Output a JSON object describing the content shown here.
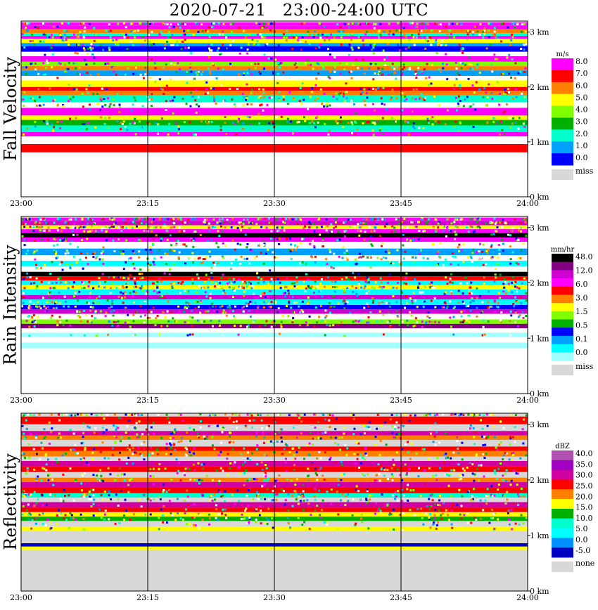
{
  "title": "2020-07-21   23:00-24:00 UTC",
  "x_tick_labels": [
    "23:00",
    "23:15",
    "23:30",
    "23:45",
    "24:00"
  ],
  "y_tick_labels": [
    "0 km",
    "1 km",
    "2 km",
    "3 km"
  ],
  "chart_data": [
    {
      "type": "heatmap",
      "title": "Fall Velocity",
      "ylabel": "Fall Velocity",
      "x": [
        "23:00",
        "23:15",
        "23:30",
        "23:45",
        "24:00"
      ],
      "y_ticks": [
        "0 km",
        "1 km",
        "2 km",
        "3 km"
      ],
      "ylim_km": [
        0,
        3.2
      ],
      "legend": {
        "unit": "m/s",
        "placement": "right",
        "labels": [
          "8.0",
          "7.0",
          "6.0",
          "5.0",
          "4.0",
          "3.0",
          "2.0",
          "1.0",
          "0.0"
        ],
        "colors": [
          "#ff00ff",
          "#ff0000",
          "#ff8000",
          "#ffff00",
          "#80ff00",
          "#00b000",
          "#00ffcc",
          "#00a0ff",
          "#0000ff"
        ],
        "missing_label": "miss",
        "missing_color": "#d8d8d8"
      },
      "bands": [
        {
          "top_km": 3.18,
          "bottom_km": 3.12,
          "color": "#ff00ff",
          "noise": 0.6
        },
        {
          "top_km": 3.12,
          "bottom_km": 3.05,
          "color": "#ff00ff",
          "noise": 0.2
        },
        {
          "top_km": 3.05,
          "bottom_km": 2.98,
          "color": "#ff8000",
          "noise": 0.3
        },
        {
          "top_km": 2.98,
          "bottom_km": 2.93,
          "color": "#00ffcc",
          "noise": 0.3
        },
        {
          "top_km": 2.93,
          "bottom_km": 2.88,
          "color": "#ff00ff",
          "noise": 0.3
        },
        {
          "top_km": 2.88,
          "bottom_km": 2.8,
          "color": "#ffff00",
          "noise": 0.2
        },
        {
          "top_km": 2.8,
          "bottom_km": 2.74,
          "color": "#00a0ff",
          "noise": 0.3
        },
        {
          "top_km": 2.74,
          "bottom_km": 2.64,
          "color": "#0000ff",
          "noise": 0.25
        },
        {
          "top_km": 2.64,
          "bottom_km": 2.56,
          "color": "#ffffff",
          "noise": 0.1
        },
        {
          "top_km": 2.56,
          "bottom_km": 2.46,
          "color": "#ff00ff",
          "noise": 0.1
        },
        {
          "top_km": 2.46,
          "bottom_km": 2.38,
          "color": "#80ff00",
          "noise": 0.3
        },
        {
          "top_km": 2.38,
          "bottom_km": 2.3,
          "color": "#ff8000",
          "noise": 0.3
        },
        {
          "top_km": 2.3,
          "bottom_km": 2.2,
          "color": "#00a0ff",
          "noise": 0.4
        },
        {
          "top_km": 2.2,
          "bottom_km": 2.12,
          "color": "#ffffff",
          "noise": 0.1
        },
        {
          "top_km": 2.12,
          "bottom_km": 2.0,
          "color": "#ffff00",
          "noise": 0.1
        },
        {
          "top_km": 2.0,
          "bottom_km": 1.93,
          "color": "#ff0000",
          "noise": 0.2
        },
        {
          "top_km": 1.93,
          "bottom_km": 1.85,
          "color": "#ff8000",
          "noise": 0.2
        },
        {
          "top_km": 1.85,
          "bottom_km": 1.72,
          "color": "#00ffcc",
          "noise": 0.5
        },
        {
          "top_km": 1.72,
          "bottom_km": 1.62,
          "color": "#ffffff",
          "noise": 0.3
        },
        {
          "top_km": 1.62,
          "bottom_km": 1.48,
          "color": "#ff00ff",
          "noise": 0.1
        },
        {
          "top_km": 1.48,
          "bottom_km": 1.4,
          "color": "#ffff00",
          "noise": 0.15
        },
        {
          "top_km": 1.4,
          "bottom_km": 1.3,
          "color": "#00b000",
          "noise": 0.5
        },
        {
          "top_km": 1.3,
          "bottom_km": 1.18,
          "color": "#00ffcc",
          "noise": 0.2
        },
        {
          "top_km": 1.18,
          "bottom_km": 1.1,
          "color": "#ff00ff",
          "noise": 0.1
        },
        {
          "top_km": 0.96,
          "bottom_km": 0.81,
          "color": "#ff0000",
          "noise": 0.0
        }
      ]
    },
    {
      "type": "heatmap",
      "title": "Rain Intensity",
      "ylabel": "Rain Intensity",
      "x": [
        "23:00",
        "23:15",
        "23:30",
        "23:45",
        "24:00"
      ],
      "y_ticks": [
        "0 km",
        "1 km",
        "2 km",
        "3 km"
      ],
      "ylim_km": [
        0,
        3.2
      ],
      "legend": {
        "unit": "mm/hr",
        "placement": "right",
        "labels": [
          "48.0",
          "12.0",
          "6.0",
          "3.0",
          "1.5",
          "0.5",
          "0.1",
          "0.0"
        ],
        "colors": [
          "#000000",
          "#800080",
          "#d000d0",
          "#ff00ff",
          "#ff0000",
          "#ff8000",
          "#ffff00",
          "#80ff00",
          "#00b000",
          "#0000ff",
          "#00a0ff",
          "#00ffff",
          "#a0ffff"
        ],
        "missing_label": "miss",
        "missing_color": "#d8d8d8"
      },
      "bands": [
        {
          "top_km": 3.18,
          "bottom_km": 3.12,
          "color": "#ff00ff",
          "noise": 0.6
        },
        {
          "top_km": 3.12,
          "bottom_km": 3.04,
          "color": "#d000d0",
          "noise": 0.5
        },
        {
          "top_km": 3.04,
          "bottom_km": 2.97,
          "color": "#ffff00",
          "noise": 0.5
        },
        {
          "top_km": 2.97,
          "bottom_km": 2.9,
          "color": "#ff00ff",
          "noise": 0.4
        },
        {
          "top_km": 2.9,
          "bottom_km": 2.82,
          "color": "#000000",
          "noise": 0.1
        },
        {
          "top_km": 2.82,
          "bottom_km": 2.74,
          "color": "#ff00ff",
          "noise": 0.3
        },
        {
          "top_km": 2.74,
          "bottom_km": 2.62,
          "color": "#ffffff",
          "noise": 0.3
        },
        {
          "top_km": 2.62,
          "bottom_km": 2.5,
          "color": "#00a0ff",
          "noise": 0.4
        },
        {
          "top_km": 2.5,
          "bottom_km": 2.4,
          "color": "#ffffff",
          "noise": 0.4
        },
        {
          "top_km": 2.4,
          "bottom_km": 2.3,
          "color": "#00ffff",
          "noise": 0.3
        },
        {
          "top_km": 2.3,
          "bottom_km": 2.2,
          "color": "#ffffff",
          "noise": 0.1
        },
        {
          "top_km": 2.2,
          "bottom_km": 2.12,
          "color": "#000000",
          "noise": 0.1
        },
        {
          "top_km": 2.12,
          "bottom_km": 2.04,
          "color": "#ff0000",
          "noise": 0.3
        },
        {
          "top_km": 2.04,
          "bottom_km": 1.96,
          "color": "#00ffff",
          "noise": 0.5
        },
        {
          "top_km": 1.96,
          "bottom_km": 1.88,
          "color": "#ffff00",
          "noise": 0.5
        },
        {
          "top_km": 1.88,
          "bottom_km": 1.78,
          "color": "#00ffff",
          "noise": 0.4
        },
        {
          "top_km": 1.78,
          "bottom_km": 1.7,
          "color": "#d000d0",
          "noise": 0.2
        },
        {
          "top_km": 1.7,
          "bottom_km": 1.6,
          "color": "#00ffff",
          "noise": 0.5
        },
        {
          "top_km": 1.6,
          "bottom_km": 1.52,
          "color": "#0000ff",
          "noise": 0.4
        },
        {
          "top_km": 1.52,
          "bottom_km": 1.44,
          "color": "#d000d0",
          "noise": 0.3
        },
        {
          "top_km": 1.44,
          "bottom_km": 1.34,
          "color": "#ffffff",
          "noise": 0.3
        },
        {
          "top_km": 1.34,
          "bottom_km": 1.26,
          "color": "#80ff00",
          "noise": 0.4
        },
        {
          "top_km": 1.26,
          "bottom_km": 1.18,
          "color": "#800080",
          "noise": 0.2
        },
        {
          "top_km": 1.1,
          "bottom_km": 1.02,
          "color": "#a0ffff",
          "noise": 0.1
        },
        {
          "top_km": 0.92,
          "bottom_km": 0.82,
          "color": "#a0ffff",
          "noise": 0.0
        }
      ]
    },
    {
      "type": "heatmap",
      "title": "Reflectivity",
      "ylabel": "Reflectivity",
      "x": [
        "23:00",
        "23:15",
        "23:30",
        "23:45",
        "24:00"
      ],
      "y_ticks": [
        "0 km",
        "1 km",
        "2 km",
        "3 km"
      ],
      "ylim_km": [
        0,
        3.2
      ],
      "legend": {
        "unit": "dBZ",
        "placement": "right",
        "labels": [
          "40.0",
          "35.0",
          "30.0",
          "25.0",
          "20.0",
          "15.0",
          "10.0",
          "5.0",
          "0.0",
          "-5.0"
        ],
        "colors": [
          "#b050b0",
          "#a000c0",
          "#d000a0",
          "#ff0000",
          "#ff8000",
          "#ffff00",
          "#00b000",
          "#00ffcc",
          "#00ffff",
          "#0090ff",
          "#0000c0"
        ],
        "missing_label": "none",
        "missing_color": "#d8d8d8"
      },
      "bands": [
        {
          "top_km": 3.2,
          "bottom_km": 3.14,
          "color": "#d8d8d8",
          "noise": 0.5
        },
        {
          "top_km": 3.14,
          "bottom_km": 3.0,
          "color": "#ff0000",
          "noise": 0.2
        },
        {
          "top_km": 3.0,
          "bottom_km": 2.88,
          "color": "#d8d8d8",
          "noise": 0.3
        },
        {
          "top_km": 2.88,
          "bottom_km": 2.8,
          "color": "#d000a0",
          "noise": 0.2
        },
        {
          "top_km": 2.8,
          "bottom_km": 2.72,
          "color": "#ff8000",
          "noise": 0.3
        },
        {
          "top_km": 2.72,
          "bottom_km": 2.6,
          "color": "#d8d8d8",
          "noise": 0.3
        },
        {
          "top_km": 2.6,
          "bottom_km": 2.52,
          "color": "#ff0000",
          "noise": 0.2
        },
        {
          "top_km": 2.52,
          "bottom_km": 2.42,
          "color": "#ff8000",
          "noise": 0.4
        },
        {
          "top_km": 2.42,
          "bottom_km": 2.34,
          "color": "#d8d8d8",
          "noise": 0.2
        },
        {
          "top_km": 2.34,
          "bottom_km": 2.24,
          "color": "#d000a0",
          "noise": 0.2
        },
        {
          "top_km": 2.24,
          "bottom_km": 2.14,
          "color": "#ff0000",
          "noise": 0.3
        },
        {
          "top_km": 2.14,
          "bottom_km": 2.04,
          "color": "#d8d8d8",
          "noise": 0.3
        },
        {
          "top_km": 2.04,
          "bottom_km": 1.96,
          "color": "#ff8000",
          "noise": 0.3
        },
        {
          "top_km": 1.96,
          "bottom_km": 1.86,
          "color": "#d000a0",
          "noise": 0.1
        },
        {
          "top_km": 1.86,
          "bottom_km": 1.76,
          "color": "#ff0000",
          "noise": 0.3
        },
        {
          "top_km": 1.76,
          "bottom_km": 1.68,
          "color": "#00ffcc",
          "noise": 0.4
        },
        {
          "top_km": 1.68,
          "bottom_km": 1.6,
          "color": "#d8d8d8",
          "noise": 0.3
        },
        {
          "top_km": 1.6,
          "bottom_km": 1.5,
          "color": "#d000a0",
          "noise": 0.2
        },
        {
          "top_km": 1.5,
          "bottom_km": 1.42,
          "color": "#ff0000",
          "noise": 0.2
        },
        {
          "top_km": 1.42,
          "bottom_km": 1.34,
          "color": "#ffff00",
          "noise": 0.3
        },
        {
          "top_km": 1.34,
          "bottom_km": 1.26,
          "color": "#00b000",
          "noise": 0.3
        },
        {
          "top_km": 1.26,
          "bottom_km": 1.16,
          "color": "#d8d8d8",
          "noise": 0.2
        },
        {
          "top_km": 1.16,
          "bottom_km": 1.08,
          "color": "#ffff00",
          "noise": 0.1
        },
        {
          "top_km": 0.86,
          "bottom_km": 0.8,
          "color": "#0000c0",
          "noise": 0.0
        },
        {
          "top_km": 0.8,
          "bottom_km": 0.74,
          "color": "#ffff00",
          "noise": 0.0
        }
      ],
      "background_color": "#d8d8d8"
    }
  ]
}
